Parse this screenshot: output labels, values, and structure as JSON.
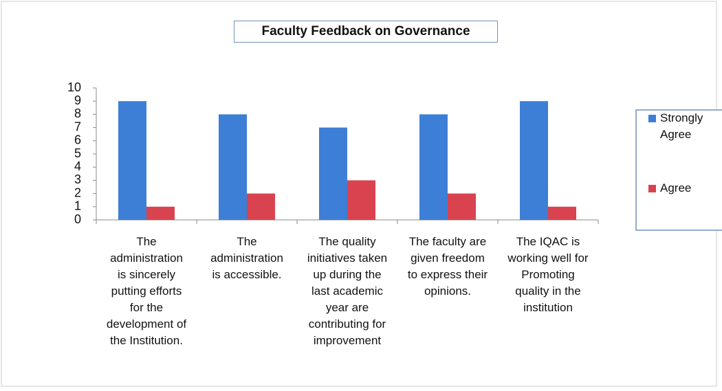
{
  "chart_data": {
    "type": "bar",
    "title": "Faculty Feedback on Governance",
    "categories": [
      "The\nadministration\nis sincerely\nputting efforts\nfor the\ndevelopment of\nthe Institution.",
      "The\nadministration\nis accessible.",
      "The quality\ninitiatives taken\nup during the\nlast academic\nyear are\ncontributing for\nimprovement",
      "The faculty are\ngiven freedom\nto express their\nopinions.",
      "The IQAC is\nworking well for\nPromoting\nquality in the\ninstitution"
    ],
    "series": [
      {
        "name": "Strongly\nAgree",
        "color": "#3d7fd6",
        "values": [
          9,
          8,
          7,
          8,
          9
        ]
      },
      {
        "name": "Agree",
        "color": "#d9434f",
        "values": [
          1,
          2,
          3,
          2,
          1
        ]
      }
    ],
    "ylim": [
      0,
      10
    ],
    "yticks": [
      0,
      1,
      2,
      3,
      4,
      5,
      6,
      7,
      8,
      9,
      10
    ],
    "grid": false,
    "legend": "right"
  }
}
